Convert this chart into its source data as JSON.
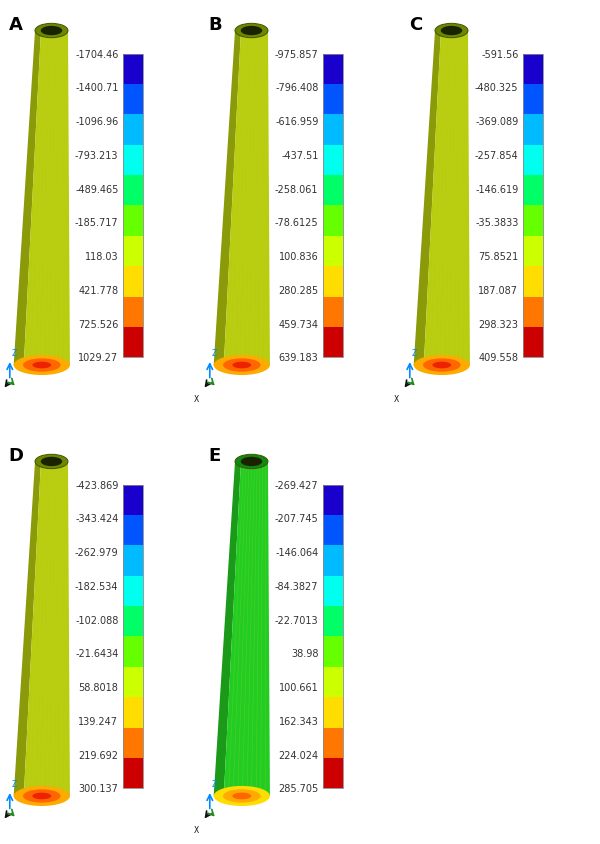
{
  "panels": [
    {
      "label": "A",
      "colorbar_values": [
        "-1704.46",
        "-1400.71",
        "-1096.96",
        "-793.213",
        "-489.465",
        "-185.717",
        "118.03",
        "421.778",
        "725.526",
        "1029.27"
      ],
      "body_color": "#b8cc10",
      "side_color": "#8a9a08",
      "top_color": "#6a8800",
      "base_colors": [
        "#ffaa00",
        "#ff6600",
        "#ee2200"
      ],
      "row": 0,
      "col": 0
    },
    {
      "label": "B",
      "colorbar_values": [
        "-975.857",
        "-796.408",
        "-616.959",
        "-437.51",
        "-258.061",
        "-78.6125",
        "100.836",
        "280.285",
        "459.734",
        "639.183"
      ],
      "body_color": "#b8cc10",
      "side_color": "#8a9a08",
      "top_color": "#6a8800",
      "base_colors": [
        "#ffaa00",
        "#ff6600",
        "#ee2200"
      ],
      "row": 0,
      "col": 1
    },
    {
      "label": "C",
      "colorbar_values": [
        "-591.56",
        "-480.325",
        "-369.089",
        "-257.854",
        "-146.619",
        "-35.3833",
        "75.8521",
        "187.087",
        "298.323",
        "409.558"
      ],
      "body_color": "#b8cc10",
      "side_color": "#8a9a08",
      "top_color": "#6a8800",
      "base_colors": [
        "#ffaa00",
        "#ff6600",
        "#ee2200"
      ],
      "row": 0,
      "col": 2
    },
    {
      "label": "D",
      "colorbar_values": [
        "-423.869",
        "-343.424",
        "-262.979",
        "-182.534",
        "-102.088",
        "-21.6434",
        "58.8018",
        "139.247",
        "219.692",
        "300.137"
      ],
      "body_color": "#b8cc10",
      "side_color": "#8a9a08",
      "top_color": "#6a8800",
      "base_colors": [
        "#ffaa00",
        "#ff6600",
        "#ee2200"
      ],
      "row": 1,
      "col": 0
    },
    {
      "label": "E",
      "colorbar_values": [
        "-269.427",
        "-207.745",
        "-146.064",
        "-84.3827",
        "-22.7013",
        "38.98",
        "100.661",
        "162.343",
        "224.024",
        "285.705"
      ],
      "body_color": "#22cc22",
      "side_color": "#1a9a18",
      "top_color": "#118811",
      "base_colors": [
        "#ffdd00",
        "#ffaa00",
        "#ff6600"
      ],
      "row": 1,
      "col": 1
    }
  ],
  "cbar_colors": [
    "#1a00cc",
    "#0055ff",
    "#00bbff",
    "#00ffee",
    "#00ff66",
    "#66ff00",
    "#ccff00",
    "#ffdd00",
    "#ff7700",
    "#cc0000"
  ],
  "bg_color": "#ffffff",
  "label_fontsize": 13,
  "tick_fontsize": 7,
  "label_color": "#333333"
}
